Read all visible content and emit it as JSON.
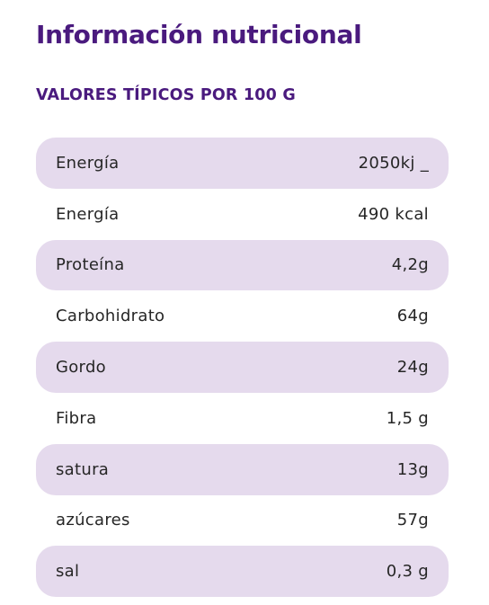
{
  "header": {
    "title": "Información nutricional",
    "subtitle": "VALORES TÍPICOS POR 100 G"
  },
  "colors": {
    "heading": "#4a1a7e",
    "row_shade": "#e5daed",
    "text": "#262626"
  },
  "rows": [
    {
      "label": "Energía",
      "value": "2050kj _"
    },
    {
      "label": "Energía",
      "value": "490 kcal"
    },
    {
      "label": "Proteína",
      "value": "4,2g"
    },
    {
      "label": "Carbohidrato",
      "value": "64g"
    },
    {
      "label": "Gordo",
      "value": "24g"
    },
    {
      "label": "Fibra",
      "value": "1,5 g"
    },
    {
      "label": "satura",
      "value": "13g"
    },
    {
      "label": "azúcares",
      "value": "57g"
    },
    {
      "label": "sal",
      "value": "0,3 g"
    }
  ]
}
